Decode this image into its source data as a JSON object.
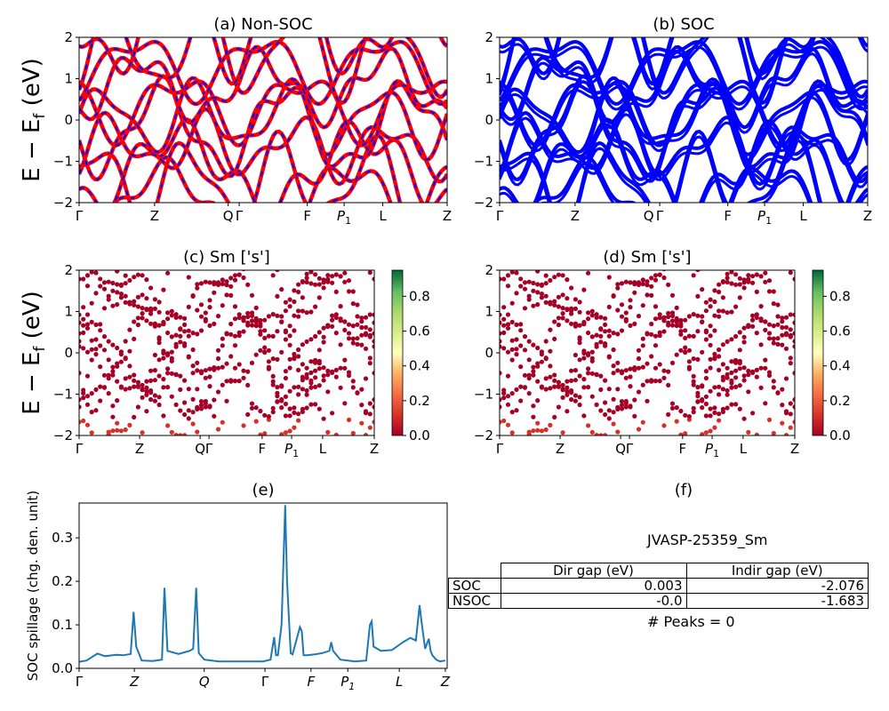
{
  "chart_data": [
    {
      "id": "a",
      "type": "line",
      "title": "(a) Non-SOC",
      "ylabel": "E − E_f (eV)",
      "ylim": [
        -2,
        2
      ],
      "yticks": [
        "2",
        "1",
        "0",
        "−1",
        "−2"
      ],
      "kpath_labels": [
        "Γ",
        "Z",
        "Q",
        "Γ",
        "F",
        "P1",
        "L",
        "Z"
      ],
      "kpath_positions": [
        0,
        0.205,
        0.405,
        0.435,
        0.62,
        0.72,
        0.825,
        1.0
      ],
      "series": [
        {
          "color": "#ff0000"
        },
        {
          "color": "#0000ff"
        }
      ]
    },
    {
      "id": "b",
      "type": "line",
      "title": "(b) SOC",
      "ylim": [
        -2,
        2
      ],
      "yticks": [
        "2",
        "1",
        "0",
        "−1",
        "−2"
      ],
      "kpath_labels": [
        "Γ",
        "Z",
        "Q",
        "Γ",
        "F",
        "P1",
        "L",
        "Z"
      ],
      "kpath_positions": [
        0,
        0.205,
        0.405,
        0.435,
        0.62,
        0.72,
        0.825,
        1.0
      ],
      "series": [
        {
          "color": "#0000ff"
        }
      ]
    },
    {
      "id": "c",
      "type": "scatter",
      "title": "(c)  Sm ['s']",
      "ylabel": "E − E_f (eV)",
      "ylim": [
        -2,
        2
      ],
      "yticks": [
        "2",
        "1",
        "0",
        "−1",
        "−2"
      ],
      "kpath_labels": [
        "Γ",
        "Z",
        "Q",
        "Γ",
        "F",
        "P1",
        "L",
        "Z"
      ],
      "kpath_positions": [
        0,
        0.205,
        0.41,
        0.44,
        0.62,
        0.72,
        0.825,
        1.0
      ],
      "colorbar": {
        "range": [
          0.0,
          0.95
        ],
        "ticks": [
          "0.0",
          "0.2",
          "0.4",
          "0.6",
          "0.8"
        ],
        "tick_values": [
          0.0,
          0.2,
          0.4,
          0.6,
          0.8
        ]
      }
    },
    {
      "id": "d",
      "type": "scatter",
      "title": "(d) Sm ['s']",
      "ylim": [
        -2,
        2
      ],
      "yticks": [
        "2",
        "1",
        "0",
        "−1",
        "−2"
      ],
      "kpath_labels": [
        "Γ",
        "Z",
        "Q",
        "Γ",
        "F",
        "P1",
        "L",
        "Z"
      ],
      "kpath_positions": [
        0,
        0.205,
        0.41,
        0.44,
        0.62,
        0.72,
        0.825,
        1.0
      ],
      "colorbar": {
        "range": [
          0.0,
          0.95
        ],
        "ticks": [
          "0.0",
          "0.2",
          "0.4",
          "0.6",
          "0.8"
        ],
        "tick_values": [
          0.0,
          0.2,
          0.4,
          0.6,
          0.8
        ]
      }
    },
    {
      "id": "e",
      "type": "line",
      "title": "(e)",
      "ylabel": "SOC spillage (chg. den. unit)",
      "ylim": [
        0,
        0.38
      ],
      "yticks": [
        "0.0",
        "0.1",
        "0.2",
        "0.3"
      ],
      "ytick_values": [
        0.0,
        0.1,
        0.2,
        0.3
      ],
      "kpath_labels": [
        "Γ",
        "Z",
        "Q",
        "Γ",
        "F",
        "P1",
        "L",
        "Z"
      ],
      "kpath_positions": [
        0,
        0.15,
        0.34,
        0.505,
        0.63,
        0.73,
        0.87,
        0.995
      ],
      "series": [
        {
          "color": "#1f77b4",
          "x": [
            0.0,
            0.02,
            0.05,
            0.07,
            0.1,
            0.12,
            0.14,
            0.148,
            0.155,
            0.17,
            0.2,
            0.225,
            0.232,
            0.24,
            0.27,
            0.3,
            0.31,
            0.318,
            0.325,
            0.34,
            0.38,
            0.42,
            0.46,
            0.5,
            0.52,
            0.53,
            0.535,
            0.54,
            0.55,
            0.56,
            0.565,
            0.575,
            0.58,
            0.6,
            0.605,
            0.61,
            0.62,
            0.64,
            0.66,
            0.68,
            0.685,
            0.69,
            0.71,
            0.75,
            0.78,
            0.79,
            0.795,
            0.8,
            0.82,
            0.85,
            0.88,
            0.9,
            0.915,
            0.925,
            0.93,
            0.94,
            0.95,
            0.955,
            0.96,
            0.97,
            0.98,
            0.995
          ],
          "y": [
            0.015,
            0.018,
            0.034,
            0.028,
            0.031,
            0.03,
            0.033,
            0.13,
            0.05,
            0.018,
            0.017,
            0.02,
            0.185,
            0.04,
            0.033,
            0.04,
            0.045,
            0.185,
            0.035,
            0.02,
            0.016,
            0.016,
            0.016,
            0.016,
            0.02,
            0.072,
            0.03,
            0.03,
            0.1,
            0.375,
            0.2,
            0.035,
            0.032,
            0.095,
            0.085,
            0.03,
            0.03,
            0.032,
            0.035,
            0.04,
            0.06,
            0.04,
            0.02,
            0.016,
            0.018,
            0.1,
            0.108,
            0.05,
            0.04,
            0.042,
            0.06,
            0.07,
            0.064,
            0.145,
            0.11,
            0.045,
            0.068,
            0.04,
            0.03,
            0.02,
            0.016,
            0.018
          ]
        }
      ]
    }
  ],
  "panel_f": {
    "title": "(f)",
    "material": "JVASP-25359_Sm",
    "table": {
      "headers": [
        "Dir gap (eV)",
        "Indir gap (eV)"
      ],
      "rows": [
        {
          "label": "SOC",
          "dir": "0.003",
          "indir": "-2.076"
        },
        {
          "label": "NSOC",
          "dir": "-0.0",
          "indir": "-1.683"
        }
      ]
    },
    "peaks": "# Peaks = 0"
  }
}
